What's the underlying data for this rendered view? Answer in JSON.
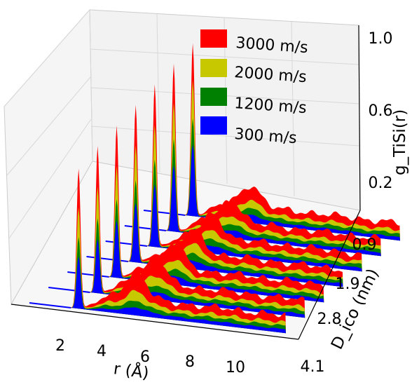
{
  "chart_data": {
    "type": "area",
    "projection": "3d-waterfall",
    "title": "",
    "xlabel": "r (Å)",
    "ylabel": "D_ico (nm)",
    "zlabel": "g_TiSi(r)",
    "x_ticks": [
      "2",
      "4",
      "6",
      "8",
      "10"
    ],
    "y_ticks": [
      "0.9",
      "1.9",
      "2.8",
      "4.1"
    ],
    "z_ticks": [
      "0.2",
      "0.6",
      "1.0"
    ],
    "xlim": [
      0,
      12
    ],
    "zlim": [
      0,
      1.0
    ],
    "grid": true,
    "legend_position": "top-right",
    "series": [
      {
        "name": "3000 m/s",
        "color": "#ff0000"
      },
      {
        "name": "2000 m/s",
        "color": "#c8c800"
      },
      {
        "name": "1200 m/s",
        "color": "#008000"
      },
      {
        "name": "300 m/s",
        "color": "#0000ff"
      }
    ],
    "slices": [
      {
        "d_ico": 4.1,
        "peak_r": 2.3,
        "peak_height": [
          0.8,
          0.58,
          0.41,
          0.3
        ],
        "second_peak_r": 5.0,
        "second_peak_height": [
          0.17,
          0.09,
          0.05,
          0.03
        ],
        "tail_height": [
          0.1,
          0.06,
          0.04,
          0.02
        ]
      },
      {
        "d_ico": 3.5,
        "peak_r": 2.3,
        "peak_height": [
          0.84,
          0.61,
          0.43,
          0.31
        ],
        "second_peak_r": 5.0,
        "second_peak_height": [
          0.16,
          0.09,
          0.05,
          0.03
        ],
        "tail_height": [
          0.1,
          0.06,
          0.04,
          0.02
        ]
      },
      {
        "d_ico": 2.8,
        "peak_r": 2.3,
        "peak_height": [
          0.87,
          0.64,
          0.45,
          0.33
        ],
        "second_peak_r": 5.0,
        "second_peak_height": [
          0.15,
          0.09,
          0.05,
          0.03
        ],
        "tail_height": [
          0.1,
          0.06,
          0.04,
          0.02
        ]
      },
      {
        "d_ico": 2.3,
        "peak_r": 2.3,
        "peak_height": [
          0.9,
          0.67,
          0.47,
          0.34
        ],
        "second_peak_r": 5.0,
        "second_peak_height": [
          0.14,
          0.09,
          0.05,
          0.03
        ],
        "tail_height": [
          0.1,
          0.06,
          0.04,
          0.02
        ]
      },
      {
        "d_ico": 1.9,
        "peak_r": 2.3,
        "peak_height": [
          0.93,
          0.7,
          0.5,
          0.36
        ],
        "second_peak_r": 5.0,
        "second_peak_height": [
          0.14,
          0.08,
          0.05,
          0.03
        ],
        "tail_height": [
          0.1,
          0.06,
          0.04,
          0.02
        ]
      },
      {
        "d_ico": 1.4,
        "peak_r": 2.3,
        "peak_height": [
          0.96,
          0.74,
          0.53,
          0.38
        ],
        "second_peak_r": 5.0,
        "second_peak_height": [
          0.13,
          0.08,
          0.05,
          0.03
        ],
        "tail_height": [
          0.1,
          0.06,
          0.04,
          0.02
        ]
      },
      {
        "d_ico": 0.9,
        "peak_r": 2.3,
        "peak_height": [
          0.99,
          0.78,
          0.56,
          0.41
        ],
        "second_peak_r": 5.0,
        "second_peak_height": [
          0.13,
          0.08,
          0.05,
          0.03
        ],
        "tail_height": [
          0.1,
          0.06,
          0.04,
          0.02
        ]
      }
    ]
  }
}
